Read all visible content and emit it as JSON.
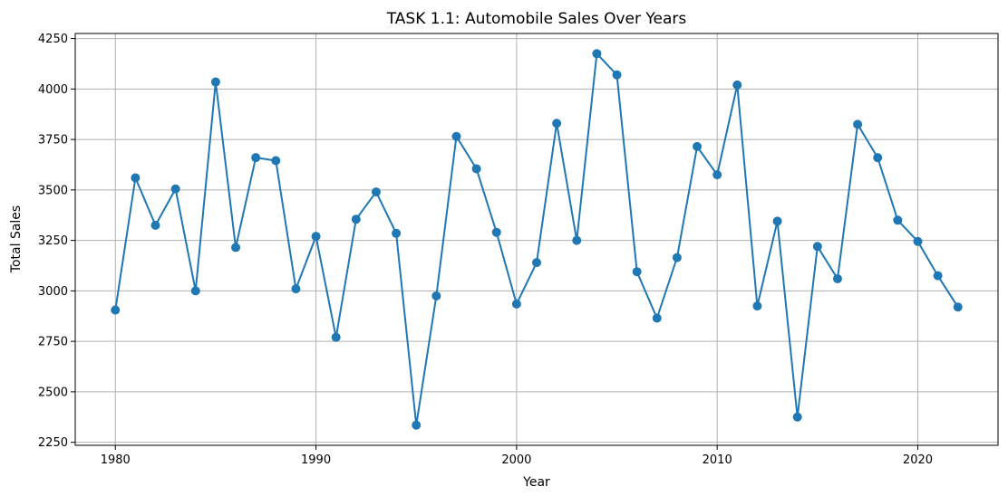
{
  "chart_data": {
    "type": "line",
    "title": "TASK 1.1: Automobile Sales Over Years",
    "xlabel": "Year",
    "ylabel": "Total Sales",
    "xlim": [
      1978,
      2024
    ],
    "ylim": [
      2235,
      4275
    ],
    "xticks": [
      "1980",
      "1990",
      "2000",
      "2010",
      "2020"
    ],
    "yticks": [
      "2250",
      "2500",
      "2750",
      "3000",
      "3250",
      "3500",
      "3750",
      "4000",
      "4250"
    ],
    "grid": true,
    "marker": "circle",
    "color": "#1f77b4",
    "series": [
      {
        "x": [
          1980,
          1981,
          1982,
          1983,
          1984,
          1985,
          1986,
          1987,
          1988,
          1989,
          1990,
          1991,
          1992,
          1993,
          1994,
          1995,
          1996,
          1997,
          1998,
          1999,
          2000,
          2001,
          2002,
          2003,
          2004,
          2005,
          2006,
          2007,
          2008,
          2009,
          2010,
          2011,
          2012,
          2013,
          2014,
          2015,
          2016,
          2017,
          2018,
          2019,
          2020,
          2021,
          2022
        ],
        "values": [
          2905,
          3560,
          3325,
          3505,
          3000,
          4035,
          3215,
          3660,
          3645,
          3010,
          3270,
          2770,
          3355,
          3490,
          3285,
          2335,
          2975,
          3765,
          3605,
          3290,
          2935,
          3140,
          3830,
          3250,
          4175,
          4070,
          3095,
          2865,
          3165,
          3715,
          3575,
          4020,
          2925,
          3345,
          2375,
          3220,
          3060,
          3825,
          3660,
          3350,
          3245,
          3075,
          2920
        ]
      }
    ]
  }
}
